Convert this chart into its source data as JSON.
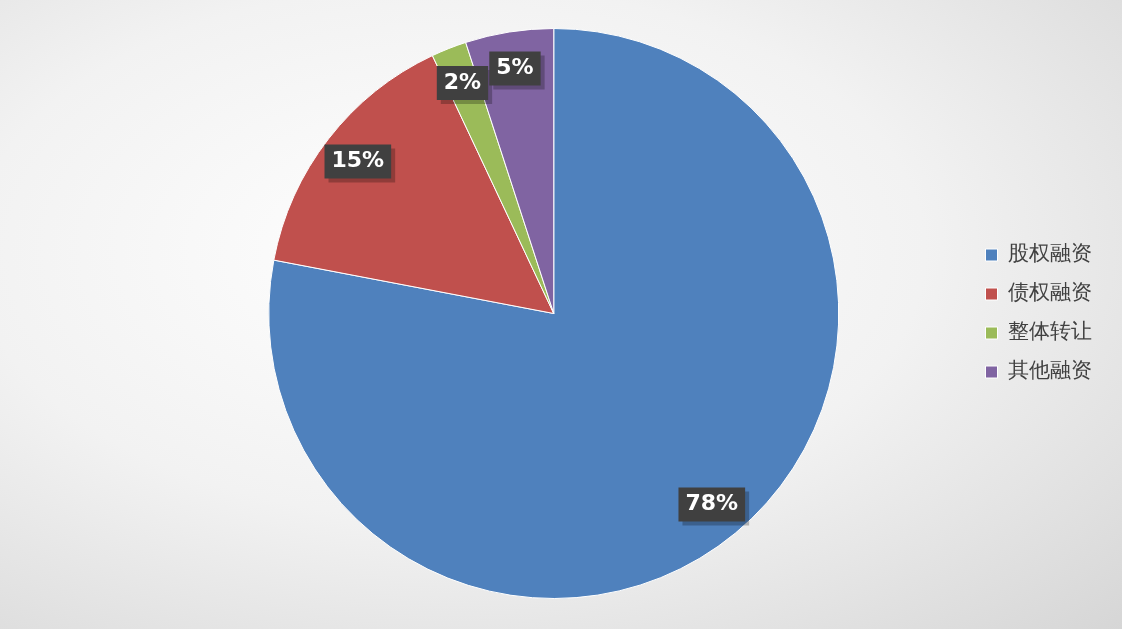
{
  "chart_data": {
    "type": "pie",
    "categories": [
      "股权融资",
      "债权融资",
      "整体转让",
      "其他融资"
    ],
    "values": [
      78,
      15,
      2,
      5
    ],
    "colors": [
      "#4f81bd",
      "#c0504d",
      "#9bbb59",
      "#8064a2"
    ],
    "value_labels": [
      "78%",
      "15%",
      "2%",
      "5%"
    ],
    "legend": "right"
  }
}
